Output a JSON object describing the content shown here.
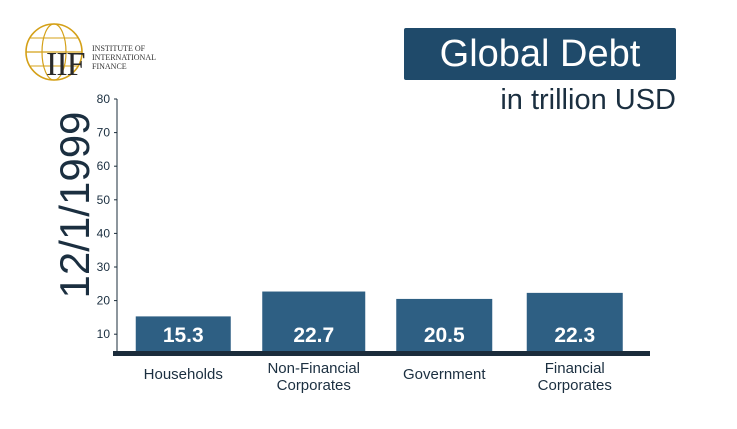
{
  "logo": {
    "mark": "IIF",
    "text_line1": "Institute of",
    "text_line2": "International",
    "text_line3": "Finance"
  },
  "date_label": "12/1/1999",
  "colors": {
    "bar": "#2e5f83",
    "title_bg": "#1f4a6a",
    "axis": "#1b2c3b",
    "text": "#1b2f40"
  },
  "chart_data": {
    "type": "bar",
    "title": "Global Debt",
    "subtitle": "in trillion USD",
    "categories": [
      [
        "Households"
      ],
      [
        "Non-Financial",
        "Corporates"
      ],
      [
        "Government"
      ],
      [
        "Financial",
        "Corporates"
      ]
    ],
    "values": [
      15.3,
      22.7,
      20.5,
      22.3
    ],
    "ylim": [
      5,
      80
    ],
    "yticks": [
      10,
      20,
      30,
      40,
      50,
      60,
      70,
      80
    ],
    "grid": false,
    "legend": "none"
  }
}
